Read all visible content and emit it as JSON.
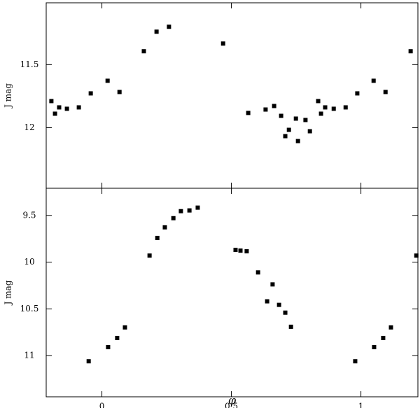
{
  "chart_data": [
    {
      "type": "scatter",
      "y_label": "J mag",
      "color": "#000000",
      "xlim": [
        -0.215,
        1.22
      ],
      "ylim": [
        12.48,
        11.01
      ],
      "yticks": [
        11.5,
        12
      ],
      "x": [
        -0.195,
        -0.181,
        -0.165,
        -0.135,
        -0.089,
        -0.043,
        0.022,
        0.068,
        0.162,
        0.211,
        0.259,
        0.468,
        0.565,
        0.632,
        0.665,
        0.692,
        0.708,
        0.722,
        0.749,
        0.757,
        0.786,
        0.803,
        0.835,
        0.846,
        0.862,
        0.895,
        0.941,
        0.986,
        1.049,
        1.095,
        1.192
      ],
      "values": [
        11.789,
        11.889,
        11.839,
        11.85,
        11.839,
        11.728,
        11.628,
        11.717,
        11.394,
        11.239,
        11.2,
        11.333,
        11.883,
        11.856,
        11.828,
        11.906,
        12.067,
        12.017,
        11.928,
        12.106,
        11.939,
        12.028,
        11.789,
        11.889,
        11.839,
        11.85,
        11.839,
        11.728,
        11.628,
        11.717,
        11.394
      ]
    },
    {
      "type": "scatter",
      "y_label": "J mag",
      "x_label": "φ",
      "color": "#000000",
      "xlim": [
        -0.215,
        1.22
      ],
      "xticks": [
        0,
        0.5,
        1
      ],
      "ylim": [
        11.44,
        9.21
      ],
      "yticks": [
        9.5,
        10,
        10.5,
        11
      ],
      "x": [
        -0.051,
        0.024,
        0.059,
        0.089,
        0.184,
        0.214,
        0.243,
        0.276,
        0.305,
        0.338,
        0.37,
        0.516,
        0.535,
        0.559,
        0.603,
        0.638,
        0.659,
        0.684,
        0.708,
        0.73,
        0.978,
        1.051,
        1.086,
        1.116,
        1.214
      ],
      "values": [
        11.06,
        10.909,
        10.811,
        10.698,
        9.93,
        9.741,
        9.628,
        9.53,
        9.455,
        9.447,
        9.417,
        9.869,
        9.877,
        9.884,
        10.11,
        10.419,
        10.238,
        10.457,
        10.54,
        10.691,
        11.06,
        10.909,
        10.811,
        10.698,
        9.93
      ]
    }
  ]
}
